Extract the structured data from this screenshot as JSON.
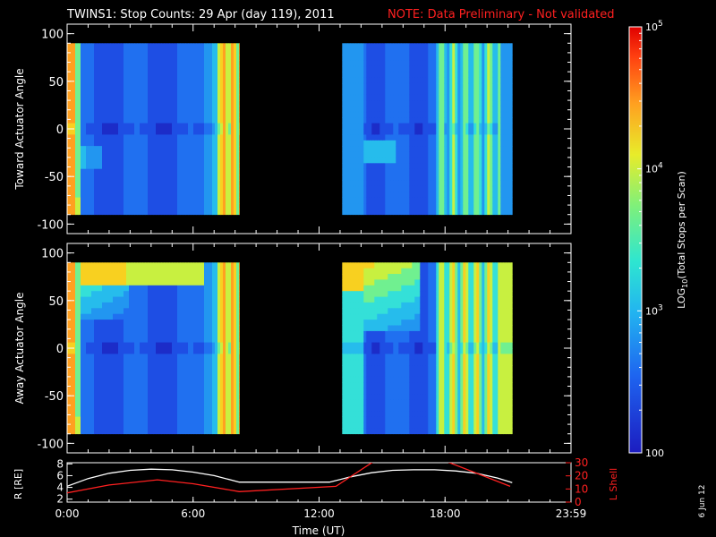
{
  "title": "TWINS1: Stop Counts: 29 Apr (day 119), 2011",
  "note": "NOTE: Data Preliminary - Not validated",
  "date_stamp": "6 Jun 12",
  "colors": {
    "background": "#000000",
    "axes": "#ffffff",
    "note": "#ff2020",
    "r_line": "#ffffff",
    "lshell_line": "#ff2020"
  },
  "chart_data": [
    {
      "type": "heatmap",
      "panel": "top",
      "ylabel": "Toward Actuator Angle",
      "ylim": [
        -110,
        110
      ],
      "y_ticks": [
        100,
        50,
        0,
        -50,
        -100
      ],
      "xlim_hours": [
        0,
        24
      ],
      "data_y_range": [
        -90,
        90
      ],
      "data_segments_hours": [
        [
          0,
          8.2
        ],
        [
          13.1,
          21.2
        ]
      ],
      "scale": "log",
      "colorbar_label": "LOG10(Total Stops per Scan)"
    },
    {
      "type": "heatmap",
      "panel": "middle",
      "ylabel": "Away Actuator Angle",
      "ylim": [
        -110,
        110
      ],
      "y_ticks": [
        100,
        50,
        0,
        -50,
        -100
      ],
      "xlim_hours": [
        0,
        24
      ],
      "data_y_range": [
        -90,
        90
      ],
      "data_segments_hours": [
        [
          0,
          8.2
        ],
        [
          13.1,
          21.2
        ]
      ],
      "scale": "log",
      "colorbar_label": "LOG10(Total Stops per Scan)"
    },
    {
      "type": "line",
      "panel": "bottom",
      "xlabel": "Time (UT)",
      "x_tick_labels": [
        "0:00",
        "6:00",
        "12:00",
        "18:00",
        "23:59"
      ],
      "x_tick_hours": [
        0,
        6,
        12,
        18,
        24
      ],
      "left_axis": {
        "label": "R [RE]",
        "ylim": [
          1.5,
          8.2
        ],
        "ticks": [
          8,
          6,
          4,
          2
        ]
      },
      "right_axis": {
        "label": "L Shell",
        "ylim": [
          0,
          30
        ],
        "ticks": [
          30,
          20,
          10,
          0
        ]
      },
      "series": [
        {
          "name": "R",
          "axis": "left",
          "x": [
            0,
            1,
            2,
            3,
            4,
            5,
            6,
            7,
            8.2,
            12.5,
            13.5,
            14.5,
            15.5,
            16.5,
            17.5,
            18.5,
            19.5,
            20.5,
            21.2
          ],
          "y": [
            4.2,
            5.5,
            6.4,
            6.9,
            7.1,
            7.0,
            6.6,
            6.0,
            4.9,
            4.9,
            5.8,
            6.5,
            6.9,
            7.0,
            7.0,
            6.8,
            6.4,
            5.6,
            4.8
          ]
        },
        {
          "name": "L Shell",
          "axis": "right",
          "x": [
            0,
            2,
            4.3,
            6,
            8.2,
            12.8,
            14.7,
            17.9,
            21.1
          ],
          "y": [
            7,
            13,
            17,
            14,
            8,
            12,
            32,
            32,
            12
          ]
        }
      ]
    },
    {
      "type": "colorbar",
      "tick_labels": [
        "10^5",
        "10^4",
        "10^3",
        "100"
      ],
      "tick_values": [
        100000,
        10000,
        1000,
        100
      ],
      "scale": "log"
    }
  ]
}
